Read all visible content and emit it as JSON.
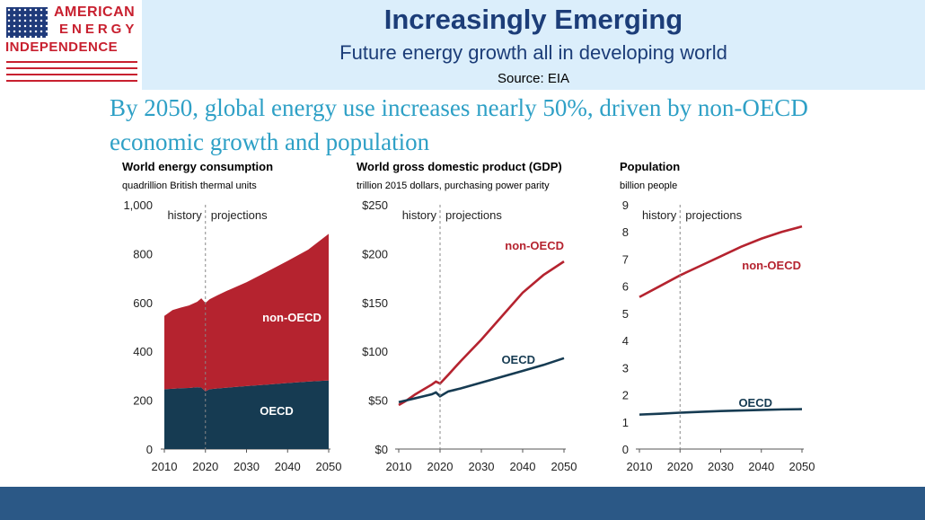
{
  "logo": {
    "line1": "AMERICAN",
    "line2": "ENERGY",
    "line3": "INDEPENDENCE"
  },
  "header": {
    "title": "Increasingly Emerging",
    "subtitle": "Future energy growth all in developing world",
    "source": "Source: EIA"
  },
  "headline": "By 2050, global energy use increases nearly 50%, driven by non-OECD economic growth and population",
  "colors": {
    "oecd": "#163b52",
    "non_oecd": "#b5232f",
    "headline": "#2ea0c6",
    "footer": "#2b5886",
    "header_band": "#dbeefb"
  },
  "chart_data": [
    {
      "type": "area",
      "title": "World energy consumption",
      "subtitle": "quadrillion British thermal units",
      "xlim": [
        2010,
        2050
      ],
      "ylim": [
        0,
        1000
      ],
      "xticks": [
        "2010",
        "2020",
        "2030",
        "2040",
        "2050"
      ],
      "yticks": [
        "0",
        "200",
        "400",
        "600",
        "800",
        "1,000"
      ],
      "divider_x": 2020,
      "history_label": "history",
      "projection_label": "projections",
      "stacked": true,
      "x": [
        2010,
        2012,
        2014,
        2016,
        2018,
        2019,
        2020,
        2021,
        2023,
        2025,
        2030,
        2035,
        2040,
        2045,
        2050
      ],
      "series": [
        {
          "name": "OECD",
          "values": [
            245,
            247,
            249,
            250,
            253,
            252,
            236,
            245,
            248,
            251,
            258,
            264,
            270,
            276,
            281
          ]
        },
        {
          "name": "non-OECD",
          "values": [
            300,
            322,
            330,
            338,
            350,
            365,
            362,
            368,
            382,
            395,
            425,
            462,
            500,
            540,
            600
          ]
        }
      ]
    },
    {
      "type": "line",
      "title": "World gross domestic product (GDP)",
      "subtitle": "trillion 2015 dollars, purchasing power parity",
      "xlim": [
        2010,
        2050
      ],
      "ylim": [
        0,
        250
      ],
      "xticks": [
        "2010",
        "2020",
        "2030",
        "2040",
        "2050"
      ],
      "yticks": [
        "$0",
        "$50",
        "$100",
        "$150",
        "$200",
        "$250"
      ],
      "divider_x": 2020,
      "history_label": "history",
      "projection_label": "projections",
      "x": [
        2010,
        2012,
        2014,
        2016,
        2018,
        2019,
        2020,
        2022,
        2025,
        2030,
        2035,
        2040,
        2045,
        2050
      ],
      "series": [
        {
          "name": "non-OECD",
          "values": [
            45,
            50,
            56,
            61,
            66,
            69,
            67,
            76,
            90,
            112,
            136,
            160,
            178,
            192
          ]
        },
        {
          "name": "OECD",
          "values": [
            48,
            50,
            52,
            54,
            56,
            58,
            54,
            59,
            62,
            68,
            74,
            80,
            86,
            93
          ]
        }
      ]
    },
    {
      "type": "line",
      "title": "Population",
      "subtitle": "billion people",
      "xlim": [
        2010,
        2050
      ],
      "ylim": [
        0,
        9
      ],
      "xticks": [
        "2010",
        "2020",
        "2030",
        "2040",
        "2050"
      ],
      "yticks": [
        "0",
        "1",
        "2",
        "3",
        "4",
        "5",
        "6",
        "7",
        "8",
        "9"
      ],
      "divider_x": 2020,
      "history_label": "history",
      "projection_label": "projections",
      "x": [
        2010,
        2015,
        2020,
        2025,
        2030,
        2035,
        2040,
        2045,
        2050
      ],
      "series": [
        {
          "name": "non-OECD",
          "values": [
            5.6,
            6.0,
            6.4,
            6.75,
            7.1,
            7.45,
            7.75,
            8.0,
            8.2
          ]
        },
        {
          "name": "OECD",
          "values": [
            1.27,
            1.3,
            1.34,
            1.37,
            1.4,
            1.42,
            1.44,
            1.46,
            1.47
          ]
        }
      ]
    }
  ],
  "annotations": [
    {
      "chart": 0,
      "series": "non-OECD",
      "text": "non-OECD"
    },
    {
      "chart": 0,
      "series": "OECD",
      "text": "OECD"
    },
    {
      "chart": 1,
      "series": "non-OECD",
      "text": "non-OECD"
    },
    {
      "chart": 1,
      "series": "OECD",
      "text": "OECD"
    },
    {
      "chart": 2,
      "series": "non-OECD",
      "text": "non-OECD"
    },
    {
      "chart": 2,
      "series": "OECD",
      "text": "OECD"
    }
  ]
}
